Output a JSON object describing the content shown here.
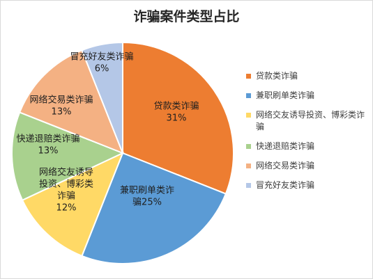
{
  "chart_data": {
    "type": "pie",
    "title": "诈骗案件类型占比",
    "legend_position": "right",
    "slices": [
      {
        "name": "贷款类诈骗",
        "value": 31,
        "label": "31%",
        "color": "#ED7D31",
        "label_lines": [
          "贷款类诈骗",
          "31%"
        ]
      },
      {
        "name": "兼职刷单类诈骗",
        "value": 25,
        "label": "25%",
        "color": "#5B9BD5",
        "label_lines": [
          "兼职刷单类诈",
          "骗25%"
        ]
      },
      {
        "name": "网络交友诱导投资、博彩类诈骗",
        "value": 12,
        "label": "12%",
        "color": "#FFD966",
        "label_lines": [
          "网络交友诱导",
          "投资、博彩类",
          "诈骗",
          "12%"
        ]
      },
      {
        "name": "快递退赔类诈骗",
        "value": 13,
        "label": "13%",
        "color": "#A9D18E",
        "label_lines": [
          "快递退赔类诈骗",
          "13%"
        ]
      },
      {
        "name": "网络交易类诈骗",
        "value": 13,
        "label": "13%",
        "color": "#F4B183",
        "label_lines": [
          "网络交易类诈骗",
          "13%"
        ]
      },
      {
        "name": "冒充好友类诈骗",
        "value": 6,
        "label": "6%",
        "color": "#B4C7E7",
        "label_lines": [
          "冒充好友类诈骗",
          "6%"
        ]
      }
    ]
  }
}
